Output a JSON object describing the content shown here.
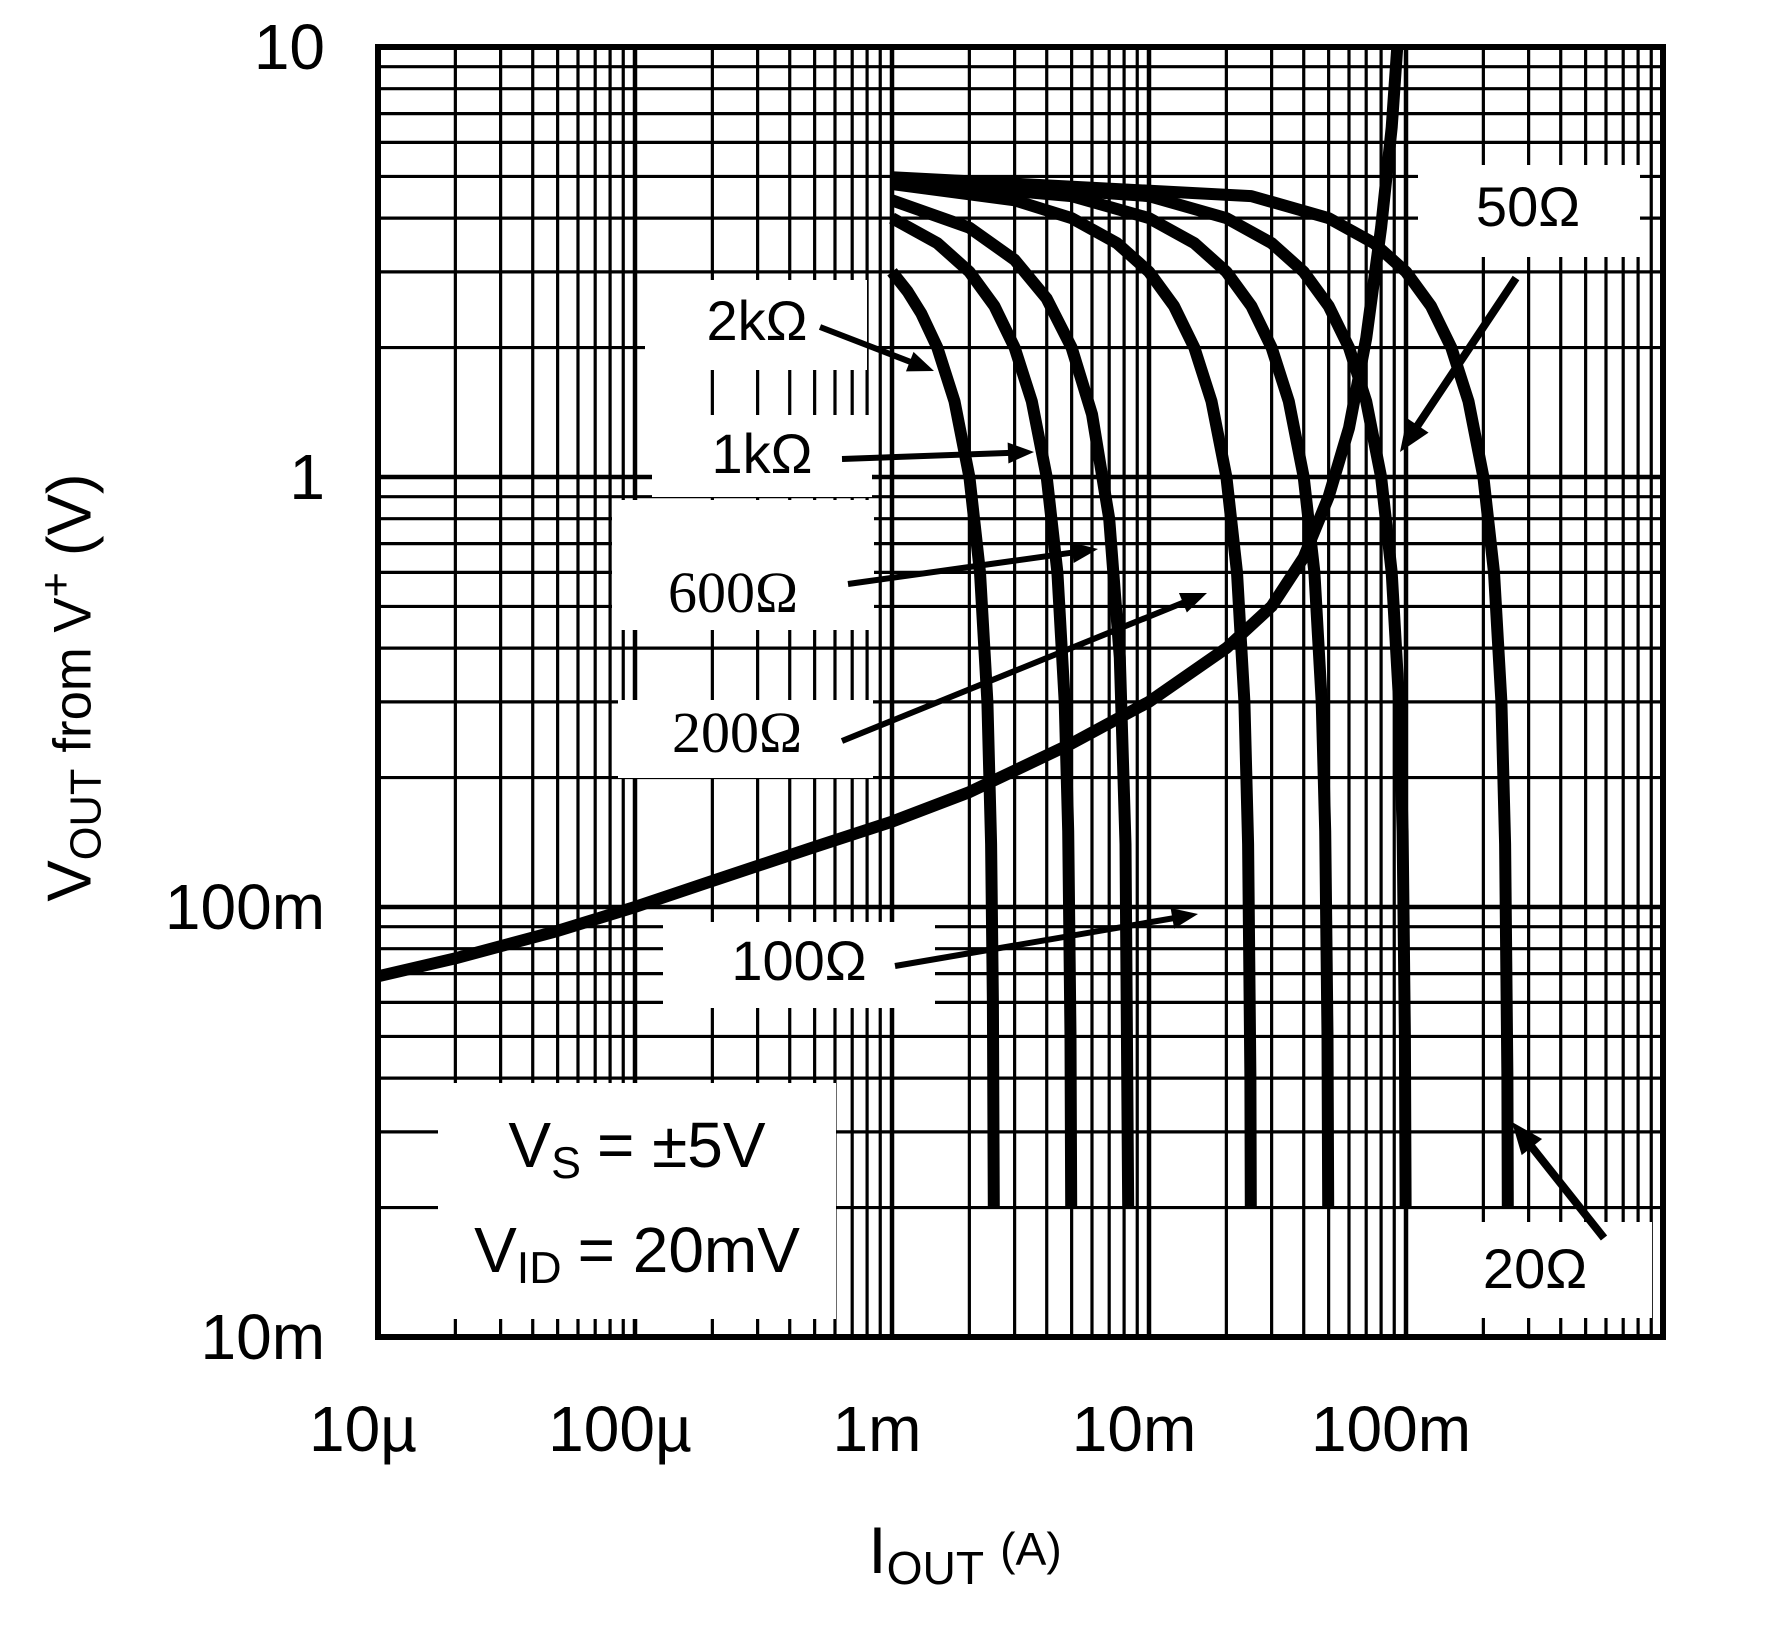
{
  "chart_data": {
    "type": "line",
    "log_x": true,
    "log_y": true,
    "x_range": [
      1e-05,
      1
    ],
    "y_range": [
      0.01,
      10
    ],
    "grid": "on",
    "xlabel": "IOUT (A)",
    "xlabel_parts": {
      "base": "I",
      "sub": "OUT",
      "unit": "(A)"
    },
    "ylabel": "VOUT from V+ (V)",
    "ylabel_parts": {
      "base": "V",
      "sub": "OUT",
      "mid": "from V",
      "sup": "+",
      "unit": "(V)"
    },
    "x_tick_labels": [
      "10µ",
      "100µ",
      "1m",
      "10m",
      "100m"
    ],
    "x_tick_values": [
      1e-05,
      0.0001,
      0.001,
      0.01,
      0.1
    ],
    "y_tick_labels": [
      "10",
      "1",
      "100m",
      "10m"
    ],
    "y_tick_values": [
      10,
      1,
      0.1,
      0.01
    ],
    "annotations": {
      "supply": {
        "base": "V",
        "sub": "S",
        "rest": "= ±5V"
      },
      "input": {
        "base": "V",
        "sub": "ID",
        "rest": "= 20mV"
      }
    },
    "colors": {
      "foreground": "#000000",
      "background": "#ffffff"
    },
    "series": [
      {
        "name": "load-2k",
        "label": "2kΩ",
        "resistance_ohms": 2000,
        "points": [
          [
            0.001,
            3
          ],
          [
            0.00115,
            2.7
          ],
          [
            0.0013,
            2.4
          ],
          [
            0.0015,
            2.0
          ],
          [
            0.00175,
            1.5
          ],
          [
            0.002,
            1.0
          ],
          [
            0.0022,
            0.6
          ],
          [
            0.00235,
            0.3
          ],
          [
            0.00243,
            0.14
          ],
          [
            0.00247,
            0.06
          ],
          [
            0.00249,
            0.02
          ]
        ]
      },
      {
        "name": "load-1k",
        "label": "1kΩ",
        "resistance_ohms": 1000,
        "points": [
          [
            0.001,
            4
          ],
          [
            0.0015,
            3.5
          ],
          [
            0.002,
            3
          ],
          [
            0.0025,
            2.5
          ],
          [
            0.003,
            2
          ],
          [
            0.0035,
            1.5
          ],
          [
            0.004,
            1
          ],
          [
            0.0044,
            0.6
          ],
          [
            0.0047,
            0.3
          ],
          [
            0.00485,
            0.15
          ],
          [
            0.00495,
            0.05
          ],
          [
            0.00498,
            0.02
          ]
        ]
      },
      {
        "name": "load-600",
        "label": "600Ω",
        "resistance_ohms": 600,
        "points": [
          [
            0.001,
            4.4
          ],
          [
            0.002,
            3.8
          ],
          [
            0.003,
            3.2
          ],
          [
            0.004,
            2.6
          ],
          [
            0.005,
            2
          ],
          [
            0.006,
            1.4
          ],
          [
            0.007,
            0.8
          ],
          [
            0.0077,
            0.38
          ],
          [
            0.0081,
            0.14
          ],
          [
            0.0083,
            0.02
          ]
        ]
      },
      {
        "name": "load-200",
        "label": "200Ω",
        "resistance_ohms": 200,
        "points": [
          [
            0.001,
            4.8
          ],
          [
            0.003,
            4.4
          ],
          [
            0.005,
            4
          ],
          [
            0.0075,
            3.5
          ],
          [
            0.01,
            3
          ],
          [
            0.0125,
            2.5
          ],
          [
            0.015,
            2
          ],
          [
            0.0175,
            1.5
          ],
          [
            0.02,
            1
          ],
          [
            0.022,
            0.6
          ],
          [
            0.0235,
            0.3
          ],
          [
            0.0243,
            0.14
          ],
          [
            0.0248,
            0.04
          ],
          [
            0.0249,
            0.02
          ]
        ]
      },
      {
        "name": "load-100",
        "label": "100Ω",
        "resistance_ohms": 100,
        "points": [
          [
            0.001,
            4.9
          ],
          [
            0.005,
            4.5
          ],
          [
            0.01,
            4
          ],
          [
            0.015,
            3.5
          ],
          [
            0.02,
            3
          ],
          [
            0.025,
            2.5
          ],
          [
            0.03,
            2
          ],
          [
            0.035,
            1.5
          ],
          [
            0.04,
            1
          ],
          [
            0.044,
            0.6
          ],
          [
            0.047,
            0.3
          ],
          [
            0.0485,
            0.15
          ],
          [
            0.0495,
            0.05
          ],
          [
            0.0498,
            0.02
          ]
        ]
      },
      {
        "name": "load-50",
        "label": "50Ω",
        "resistance_ohms": 50,
        "points": [
          [
            0.001,
            4.95
          ],
          [
            0.01,
            4.5
          ],
          [
            0.02,
            4
          ],
          [
            0.03,
            3.5
          ],
          [
            0.04,
            3
          ],
          [
            0.05,
            2.5
          ],
          [
            0.06,
            2
          ],
          [
            0.07,
            1.5
          ],
          [
            0.08,
            1
          ],
          [
            0.088,
            0.6
          ],
          [
            0.094,
            0.3
          ],
          [
            0.097,
            0.15
          ],
          [
            0.099,
            0.05
          ],
          [
            0.0996,
            0.02
          ]
        ]
      },
      {
        "name": "load-20",
        "label": "20Ω",
        "resistance_ohms": 20,
        "points": [
          [
            0.001,
            4.98
          ],
          [
            0.025,
            4.5
          ],
          [
            0.05,
            4
          ],
          [
            0.075,
            3.5
          ],
          [
            0.1,
            3
          ],
          [
            0.125,
            2.5
          ],
          [
            0.15,
            2
          ],
          [
            0.175,
            1.5
          ],
          [
            0.2,
            1
          ],
          [
            0.22,
            0.6
          ],
          [
            0.235,
            0.3
          ],
          [
            0.243,
            0.14
          ],
          [
            0.248,
            0.04
          ],
          [
            0.249,
            0.02
          ]
        ]
      },
      {
        "name": "saturation-limit",
        "label": "",
        "points": [
          [
            1e-05,
            0.069
          ],
          [
            2e-05,
            0.076
          ],
          [
            5e-05,
            0.088
          ],
          [
            0.0001,
            0.1
          ],
          [
            0.0002,
            0.115
          ],
          [
            0.0005,
            0.138
          ],
          [
            0.001,
            0.158
          ],
          [
            0.002,
            0.185
          ],
          [
            0.005,
            0.24
          ],
          [
            0.01,
            0.3
          ],
          [
            0.02,
            0.4
          ],
          [
            0.03,
            0.5
          ],
          [
            0.04,
            0.65
          ],
          [
            0.05,
            0.9
          ],
          [
            0.06,
            1.3
          ],
          [
            0.07,
            2.1
          ],
          [
            0.08,
            3.8
          ],
          [
            0.088,
            6.5
          ],
          [
            0.093,
            10.5
          ]
        ]
      }
    ]
  }
}
